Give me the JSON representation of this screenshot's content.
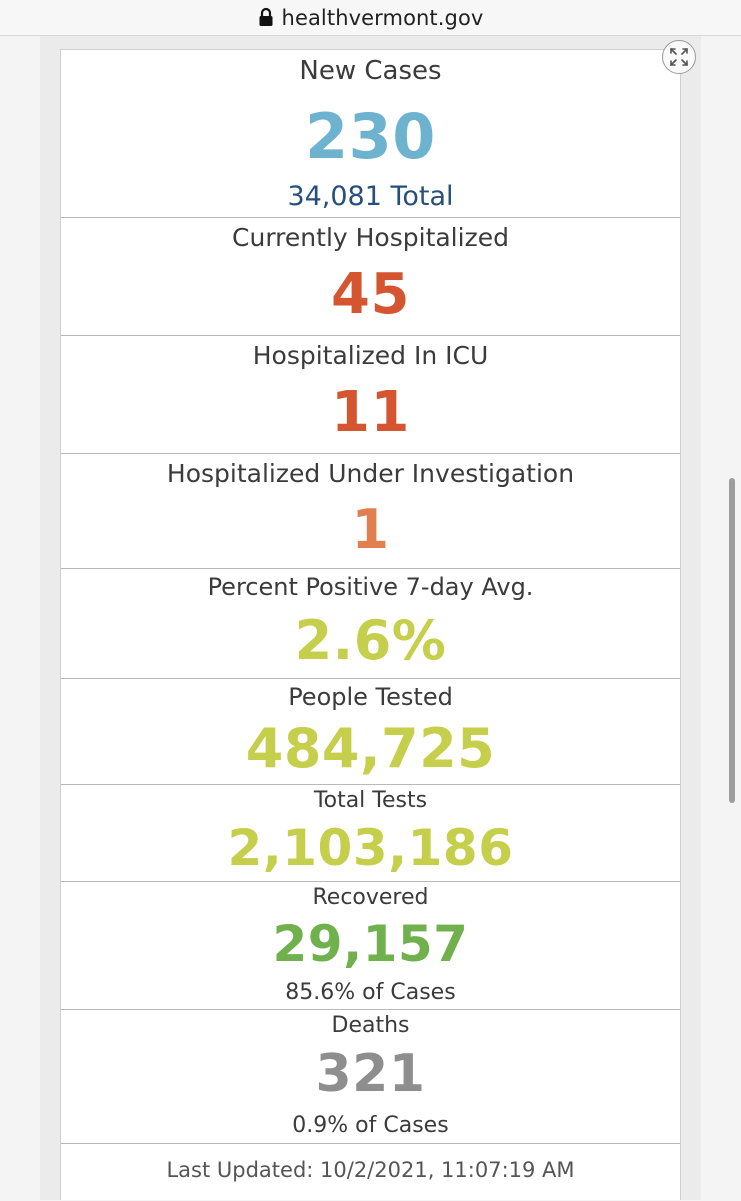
{
  "browser": {
    "url": "healthvermont.gov"
  },
  "colors": {
    "new_cases": "#6db3cf",
    "new_cases_total": "#264f7c",
    "hospital": "#d4552f",
    "under_investigation": "#e17f4f",
    "testing": "#c6cf4b",
    "recovered": "#70b14e",
    "deaths": "#8e8e8e"
  },
  "stats": {
    "new_cases": {
      "label": "New Cases",
      "value": "230",
      "sub": "34,081 Total"
    },
    "hospitalized": {
      "label": "Currently Hospitalized",
      "value": "45"
    },
    "icu": {
      "label": "Hospitalized In ICU",
      "value": "11"
    },
    "investigation": {
      "label": "Hospitalized Under Investigation",
      "value": "1"
    },
    "percent_positive": {
      "label": "Percent Positive 7-day Avg.",
      "value": "2.6%"
    },
    "people_tested": {
      "label": "People Tested",
      "value": "484,725"
    },
    "total_tests": {
      "label": "Total Tests",
      "value": "2,103,186"
    },
    "recovered": {
      "label": "Recovered",
      "value": "29,157",
      "sub": "85.6% of Cases"
    },
    "deaths": {
      "label": "Deaths",
      "value": "321",
      "sub": "0.9% of Cases"
    }
  },
  "footer": {
    "last_updated": "Last Updated: 10/2/2021, 11:07:19 AM"
  }
}
